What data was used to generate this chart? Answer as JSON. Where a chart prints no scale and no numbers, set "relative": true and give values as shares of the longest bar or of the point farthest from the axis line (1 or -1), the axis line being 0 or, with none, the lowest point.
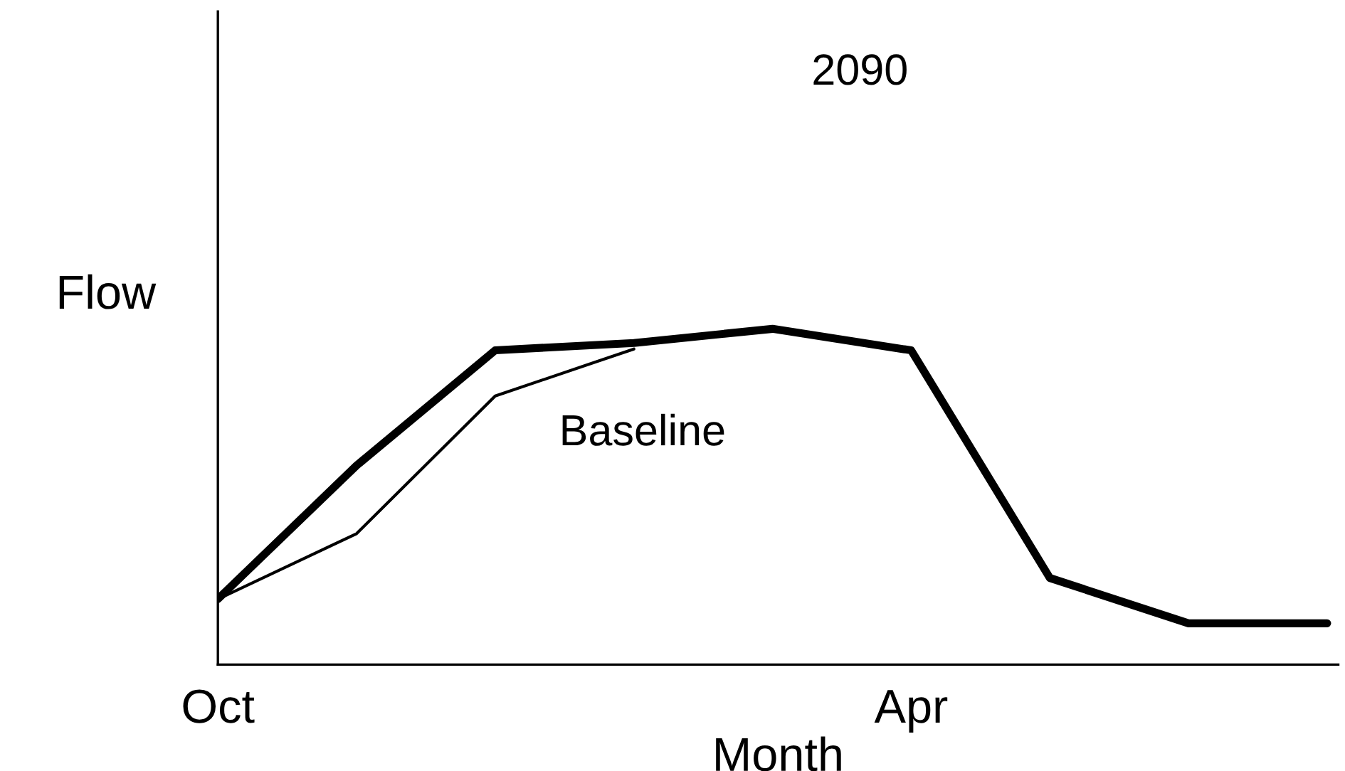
{
  "chart_data": {
    "type": "line",
    "title": "2090",
    "relative": true,
    "xlabel": "Month",
    "ylabel": "Flow",
    "categories": [
      "Oct",
      null,
      null,
      null,
      null,
      "Apr",
      null,
      null,
      null
    ],
    "legend": false,
    "grid": false,
    "marker": "none",
    "line_style": "solid",
    "series": [
      {
        "color": "#000000",
        "values": [
          0.195,
          0.593,
          0.936,
          0.958,
          1,
          0.936,
          0.258,
          0.123,
          0.123
        ]
      },
      {
        "name": "Baseline",
        "color": "#000000",
        "values": [
          0.195,
          0.39,
          0.8,
          0.94,
          null,
          null,
          null,
          null,
          null
        ]
      }
    ]
  }
}
